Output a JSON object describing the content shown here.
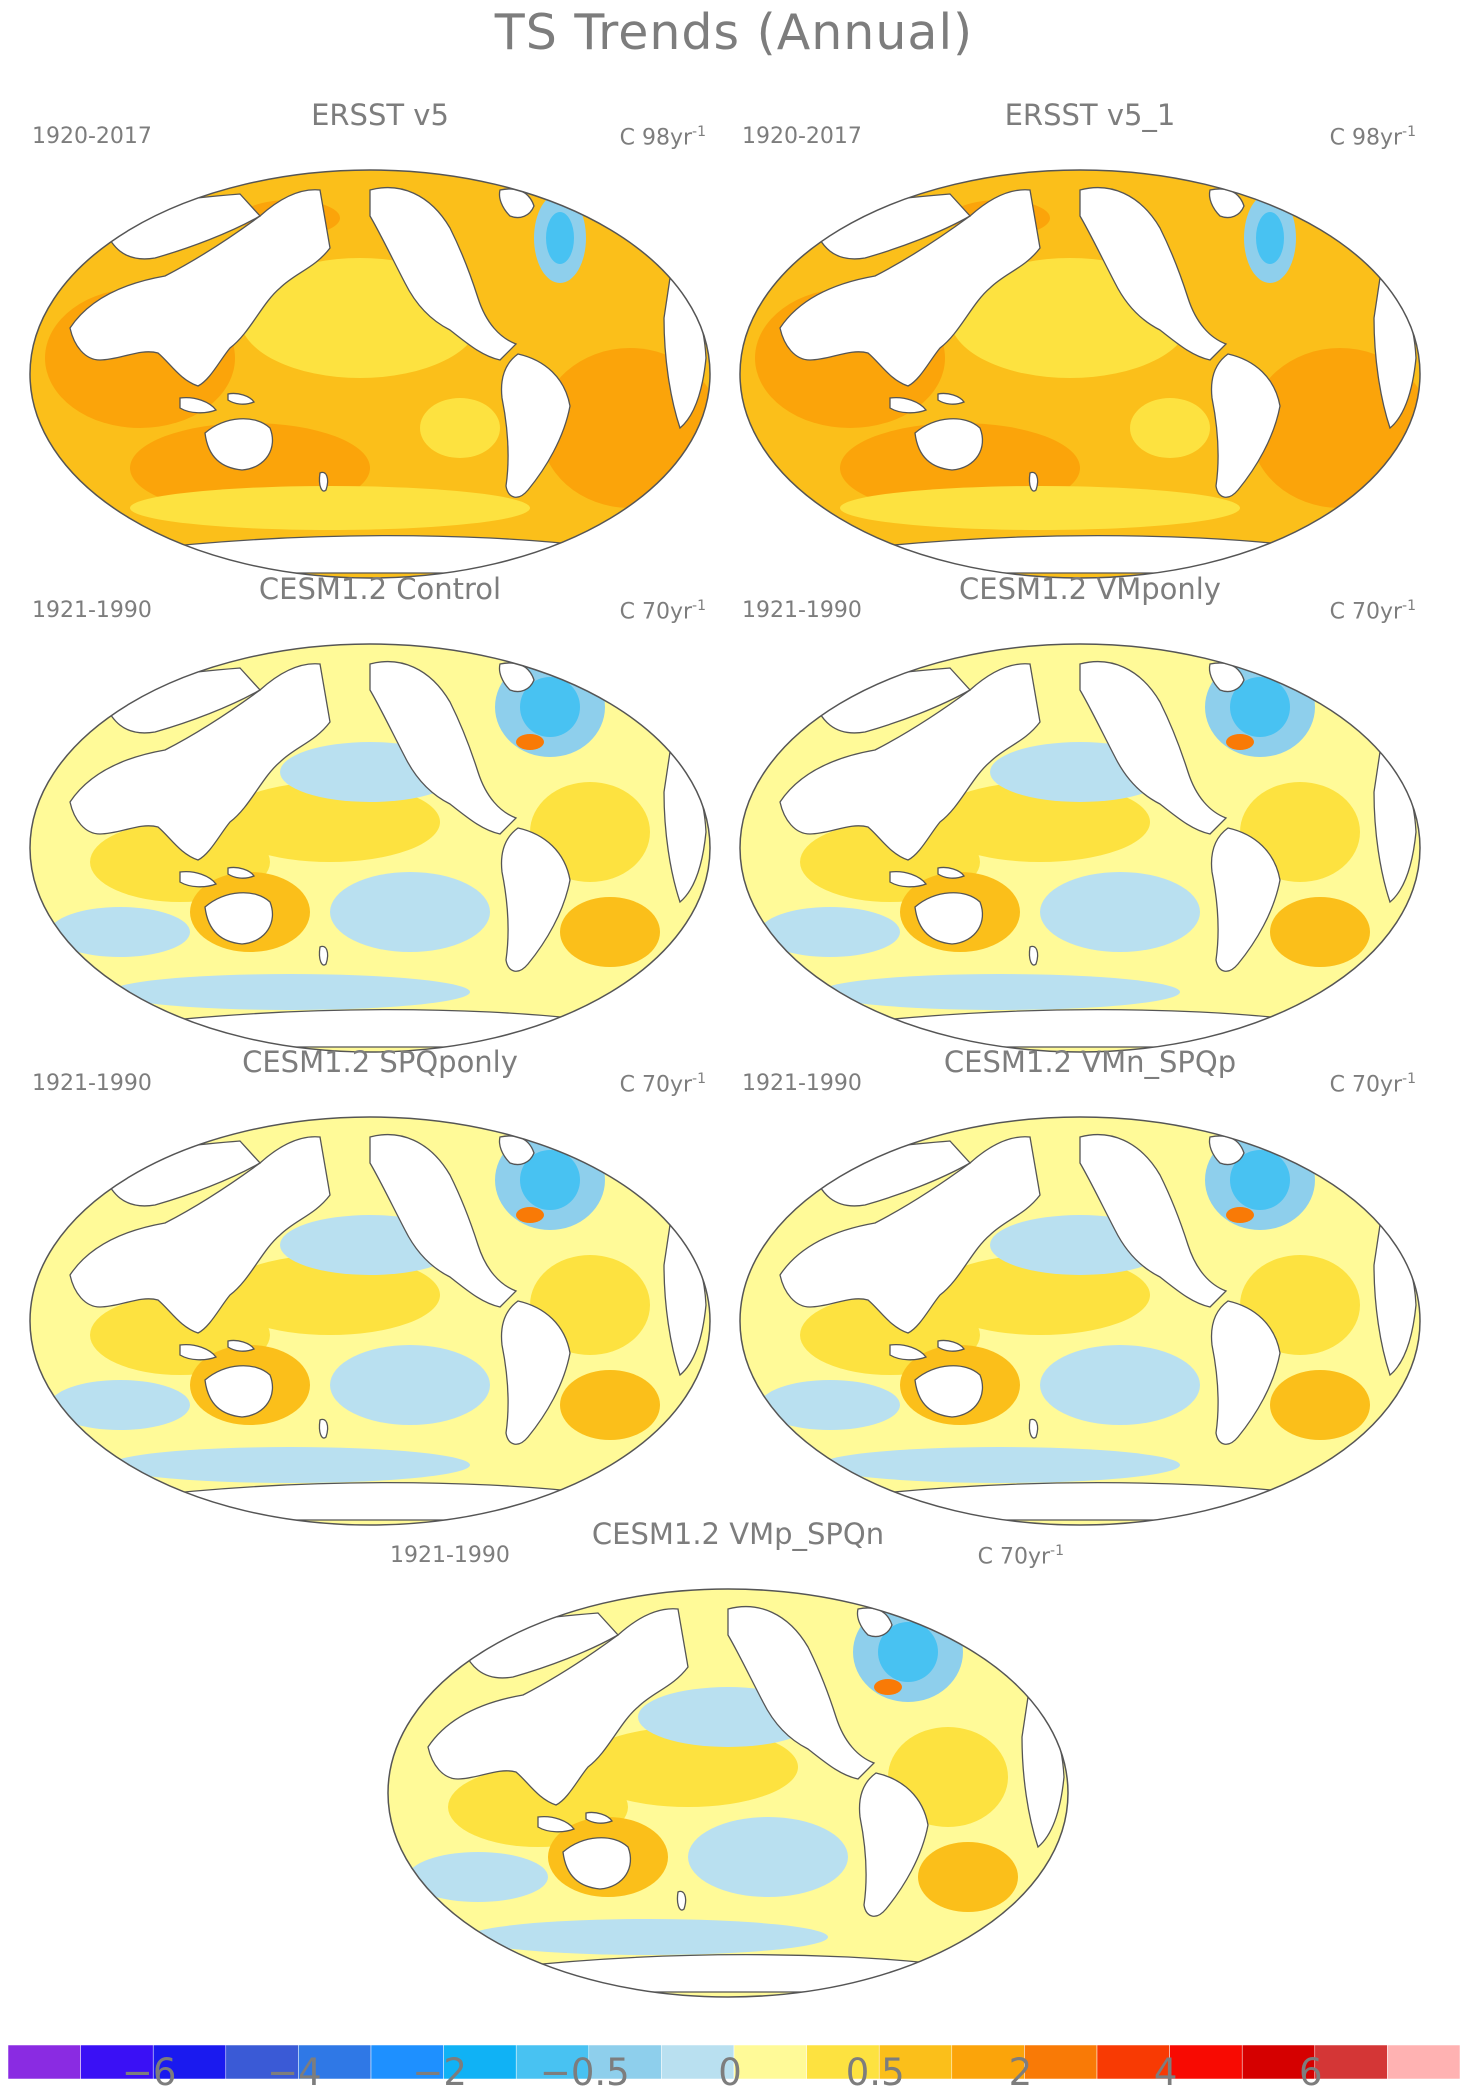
{
  "title": "TS Trends (Annual)",
  "panels": [
    {
      "id": "ersst-v5",
      "title": "ERSST v5",
      "period": "1920-2017",
      "units": "C 98yr",
      "units_exp": "-1",
      "regime": "observed"
    },
    {
      "id": "ersst-v5-1",
      "title": "ERSST v5_1",
      "period": "1920-2017",
      "units": "C 98yr",
      "units_exp": "-1",
      "regime": "observed"
    },
    {
      "id": "cesm-control",
      "title": "CESM1.2 Control",
      "period": "1921-1990",
      "units": "C 70yr",
      "units_exp": "-1",
      "regime": "model"
    },
    {
      "id": "cesm-vmponly",
      "title": "CESM1.2 VMponly",
      "period": "1921-1990",
      "units": "C 70yr",
      "units_exp": "-1",
      "regime": "model"
    },
    {
      "id": "cesm-spqponly",
      "title": "CESM1.2 SPQponly",
      "period": "1921-1990",
      "units": "C 70yr",
      "units_exp": "-1",
      "regime": "model"
    },
    {
      "id": "cesm-vmn-spqp",
      "title": "CESM1.2 VMn_SPQp",
      "period": "1921-1990",
      "units": "C 70yr",
      "units_exp": "-1",
      "regime": "model"
    },
    {
      "id": "cesm-vmp-spqn",
      "title": "CESM1.2 VMp_SPQn",
      "period": "1921-1990",
      "units": "C 70yr",
      "units_exp": "-1",
      "regime": "model"
    }
  ],
  "colorbar": {
    "colors": [
      "#8a2be2",
      "#3a10f5",
      "#1a1aef",
      "#3a5ad6",
      "#2f78e6",
      "#1e90ff",
      "#10b2f5",
      "#48c2f2",
      "#8ecfec",
      "#b9e0f0",
      "#fffa98",
      "#fde240",
      "#fbbf1a",
      "#fba40a",
      "#f97a06",
      "#f83a03",
      "#f80a02",
      "#d50000",
      "#d43636",
      "#ffb2b2"
    ],
    "labels": [
      "−6",
      "−4",
      "−2",
      "−0.5",
      "0",
      "0.5",
      "2",
      "4",
      "6"
    ]
  }
}
